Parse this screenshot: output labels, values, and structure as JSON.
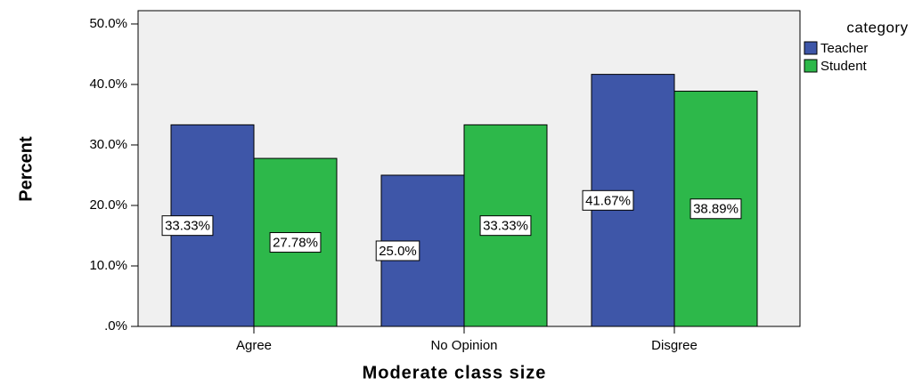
{
  "chart_data": {
    "type": "bar",
    "x_label": "Moderate class size",
    "y_label": "Percent",
    "categories": [
      "Agree",
      "No Opinion",
      "Disgree"
    ],
    "series": [
      {
        "name": "Teacher",
        "color": "#3e56a8",
        "values": [
          33.33,
          25.0,
          41.67
        ],
        "value_labels": [
          "33.33%",
          "25.0%",
          "41.67%"
        ]
      },
      {
        "name": "Student",
        "color": "#2db84a",
        "values": [
          27.78,
          33.33,
          38.89
        ],
        "value_labels": [
          "27.78%",
          "33.33%",
          "38.89%"
        ]
      }
    ],
    "legend_title": "category",
    "legend_position": "right",
    "ylim": [
      0,
      52.2
    ],
    "yticks": [
      {
        "value": 0,
        "label": ".0%"
      },
      {
        "value": 10,
        "label": "10.0%"
      },
      {
        "value": 20,
        "label": "20.0%"
      },
      {
        "value": 30,
        "label": "30.0%"
      },
      {
        "value": 40,
        "label": "40.0%"
      },
      {
        "value": 50,
        "label": "50.0%"
      }
    ]
  }
}
